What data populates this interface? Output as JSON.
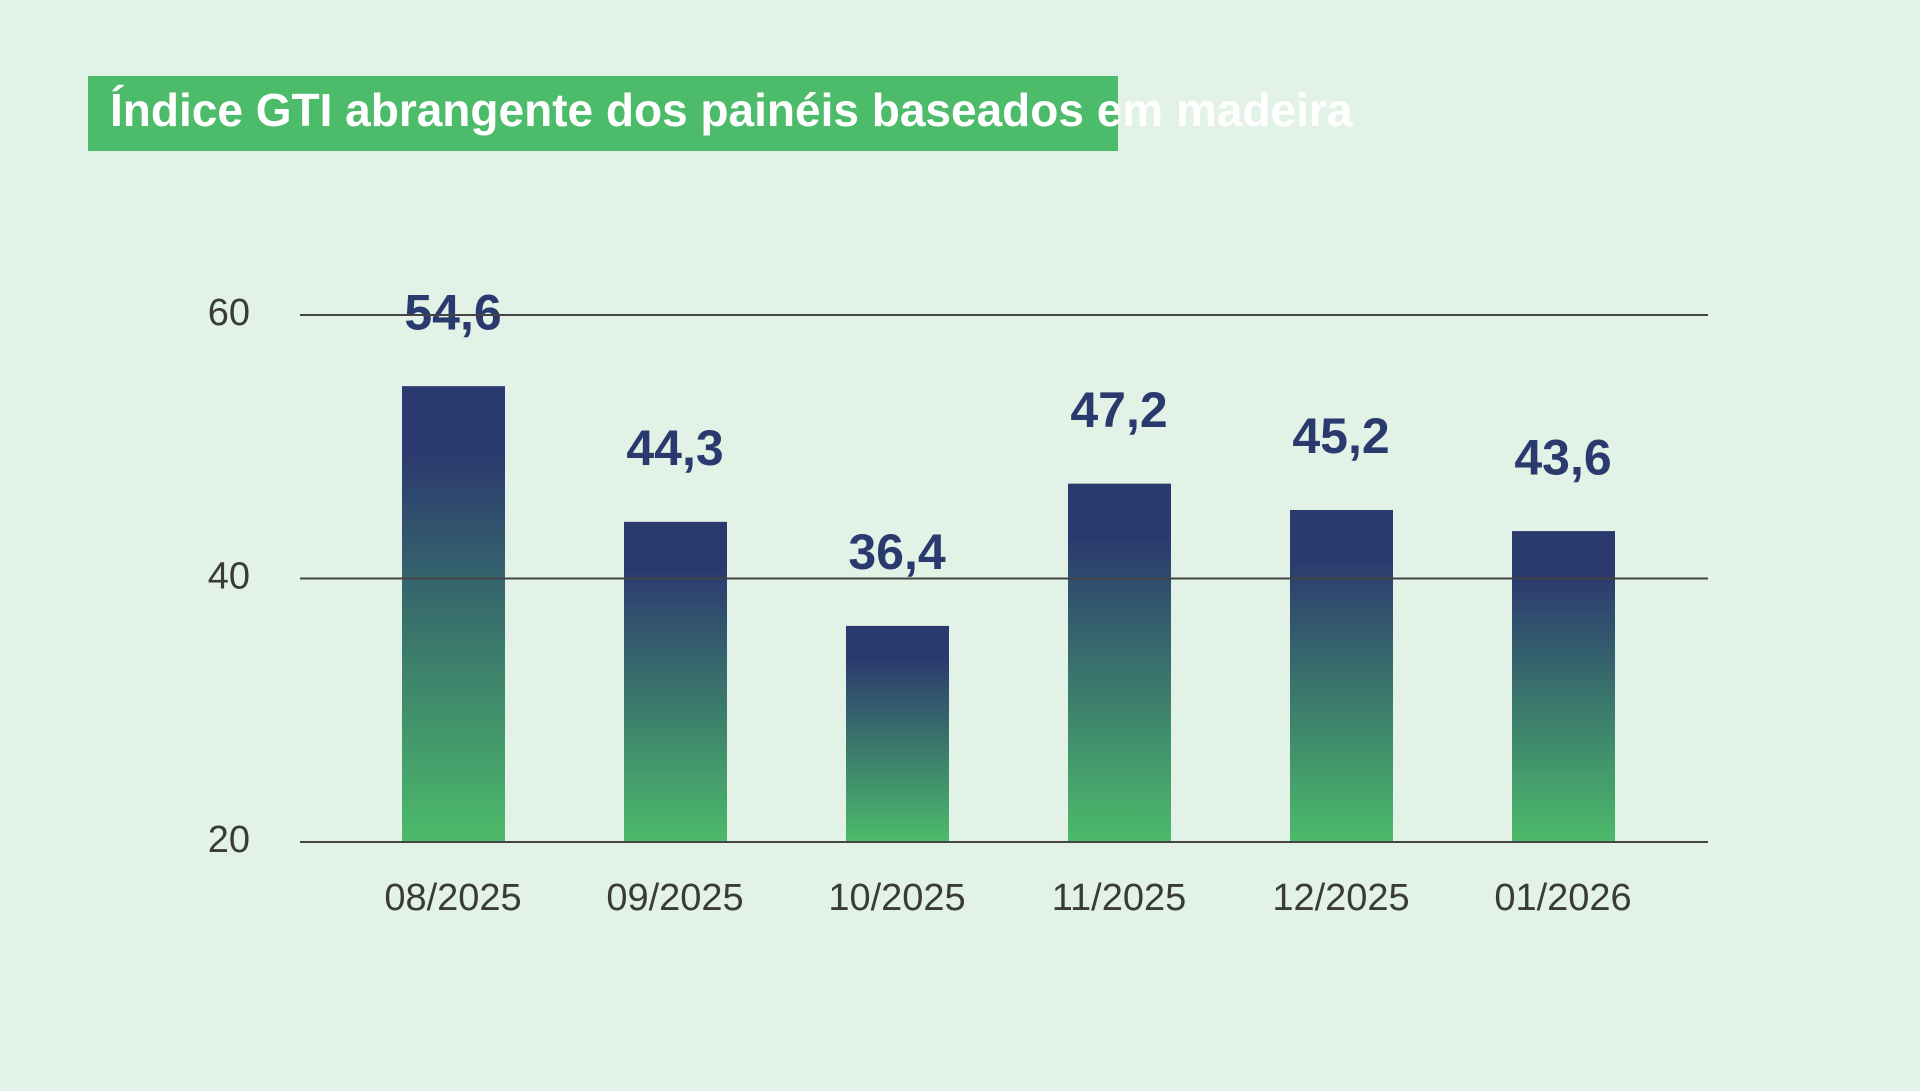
{
  "chart_data": {
    "type": "bar",
    "title": "Índice GTI abrangente dos painéis baseados em madeira",
    "categories": [
      "08/2025",
      "09/2025",
      "10/2025",
      "11/2025",
      "12/2025",
      "01/2026"
    ],
    "values": [
      54.6,
      44.3,
      36.4,
      47.2,
      45.2,
      43.6
    ],
    "value_labels": [
      "54,6",
      "44,3",
      "36,4",
      "47,2",
      "45,2",
      "43,6"
    ],
    "color": [
      "#2b3a6e",
      "#4cbb6a"
    ],
    "ylim": [
      20,
      60
    ],
    "yticks": [
      20,
      40,
      60
    ],
    "grid": true
  }
}
